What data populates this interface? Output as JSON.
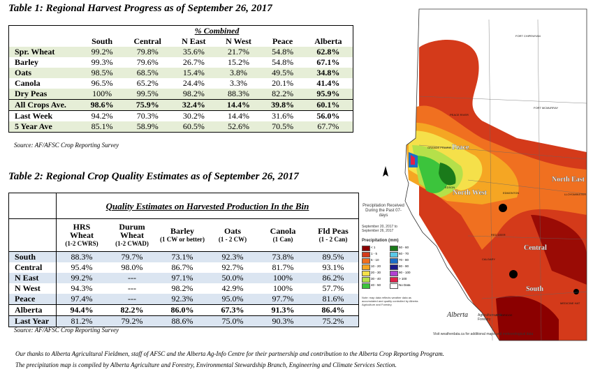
{
  "table1": {
    "title": "Table 1: Regional Harvest Progress as of September 26, 2017",
    "group_header": "% Combined",
    "columns": [
      "South",
      "Central",
      "N East",
      "N West",
      "Peace",
      "Alberta"
    ],
    "rows": [
      {
        "label": "Spr. Wheat",
        "values": [
          "99.2%",
          "79.8%",
          "35.6%",
          "21.7%",
          "54.8%",
          "62.8%"
        ]
      },
      {
        "label": "Barley",
        "values": [
          "99.3%",
          "79.6%",
          "26.7%",
          "15.2%",
          "54.8%",
          "67.1%"
        ]
      },
      {
        "label": "Oats",
        "values": [
          "98.5%",
          "68.5%",
          "15.4%",
          "3.8%",
          "49.5%",
          "34.8%"
        ]
      },
      {
        "label": "Canola",
        "values": [
          "96.5%",
          "65.2%",
          "24.4%",
          "3.3%",
          "20.1%",
          "41.4%"
        ]
      },
      {
        "label": "Dry Peas",
        "values": [
          "100%",
          "99.5%",
          "98.2%",
          "88.3%",
          "82.2%",
          "95.9%"
        ]
      },
      {
        "label": "All Crops Ave.",
        "values": [
          "98.6%",
          "75.9%",
          "32.4%",
          "14.4%",
          "39.8%",
          "60.1%"
        ]
      },
      {
        "label": "Last Week",
        "values": [
          "94.2%",
          "70.3%",
          "30.2%",
          "14.4%",
          "31.6%",
          "56.0%"
        ]
      },
      {
        "label": "5 Year Ave",
        "values": [
          "85.1%",
          "58.9%",
          "60.5%",
          "52.6%",
          "70.5%",
          "67.7%"
        ]
      }
    ],
    "source": "Source: AF/AFSC Crop Reporting Survey"
  },
  "table2": {
    "title": "Table 2: Regional Crop Quality Estimates as of September 26, 2017",
    "group_header": "Quality Estimates on Harvested Production In the Bin",
    "columns": [
      {
        "name": "HRS Wheat",
        "unit": "(1-2 CWRS)"
      },
      {
        "name": "Durum Wheat",
        "unit": "(1-2 CWAD)"
      },
      {
        "name": "Barley",
        "unit": "(1 CW or better)"
      },
      {
        "name": "Oats",
        "unit": "(1 - 2 CW)"
      },
      {
        "name": "Canola",
        "unit": "(1 Can)"
      },
      {
        "name": "Fld Peas",
        "unit": "(1 - 2 Can)"
      }
    ],
    "rows": [
      {
        "label": "South",
        "values": [
          "88.3%",
          "79.7%",
          "73.1%",
          "92.3%",
          "73.8%",
          "89.5%"
        ]
      },
      {
        "label": "Central",
        "values": [
          "95.4%",
          "98.0%",
          "86.7%",
          "92.7%",
          "81.7%",
          "93.1%"
        ]
      },
      {
        "label": "N East",
        "values": [
          "99.2%",
          "---",
          "97.1%",
          "50.0%",
          "100%",
          "86.2%"
        ]
      },
      {
        "label": "N West",
        "values": [
          "94.3%",
          "---",
          "98.2%",
          "42.9%",
          "100%",
          "57.7%"
        ]
      },
      {
        "label": "Peace",
        "values": [
          "97.4%",
          "---",
          "92.3%",
          "95.0%",
          "97.7%",
          "81.6%"
        ]
      },
      {
        "label": "Alberta",
        "values": [
          "94.4%",
          "82.2%",
          "86.0%",
          "67.3%",
          "91.3%",
          "86.4%"
        ]
      },
      {
        "label": "Last Year",
        "values": [
          "81.2%",
          "79.2%",
          "88.6%",
          "75.0%",
          "90.3%",
          "75.2%"
        ]
      }
    ],
    "source": "Source: AF/AFSC Crop Reporting Survey"
  },
  "footer": {
    "line1": "Our thanks to Alberta Agricultural Fieldmen, staff of AFSC and the Alberta Ag-Info Centre for their partnership and contribution to the Alberta Crop Reporting Program.",
    "line2": "The precipitation map is compiled by Alberta Agriculture and Forestry, Environmental Stewardship Branch, Engineering and Climate Services Section."
  },
  "map": {
    "legend_title": "Precipitation Received During the Past 07-days",
    "date_range": "September 20, 2017 to September 26, 2017",
    "legend_label": "Precipitation (mm)",
    "legend_items": [
      {
        "label": "< 1",
        "color": "#8b0000"
      },
      {
        "label": "1 - 5",
        "color": "#d43a1a"
      },
      {
        "label": "5 - 10",
        "color": "#f07020"
      },
      {
        "label": "10 - 20",
        "color": "#f5a623"
      },
      {
        "label": "20 - 30",
        "color": "#f5e04a"
      },
      {
        "label": "30 - 40",
        "color": "#b5e04a"
      },
      {
        "label": "40 - 50",
        "color": "#3cc43c"
      },
      {
        "label": "50 - 60",
        "color": "#1a7a1a"
      },
      {
        "label": "60 - 70",
        "color": "#5ac8e8"
      },
      {
        "label": "70 - 80",
        "color": "#1a6ec8"
      },
      {
        "label": "80 - 90",
        "color": "#1a1a8b"
      },
      {
        "label": "90 - 100",
        "color": "#b040d0"
      },
      {
        "label": "> 100",
        "color": "#e0204a"
      },
      {
        "label": "No Data",
        "color": "#ffffff"
      }
    ],
    "region_labels": [
      "Peace",
      "North West",
      "North East",
      "Central",
      "South"
    ],
    "towns": [
      "FORT CHIPEWYAN",
      "FORT MCMURRAY",
      "PEACE RIVER",
      "GRANDE PRAIRIE",
      "EDSON",
      "EDMONTON",
      "RED DEER",
      "CALGARY",
      "LETHBRIDGE",
      "MEDICINE HAT",
      "LLOYDMINSTER"
    ],
    "disclaimer": "Note: map data reflects weather data as accumulated and quality controlled by Alberta Agriculture and Forestry.",
    "logo_text": "Alberta",
    "logo_sub": "Agriculture and Forestry",
    "visit_text": "Visit weatherdata.ca for additional maps and meteorological data"
  }
}
